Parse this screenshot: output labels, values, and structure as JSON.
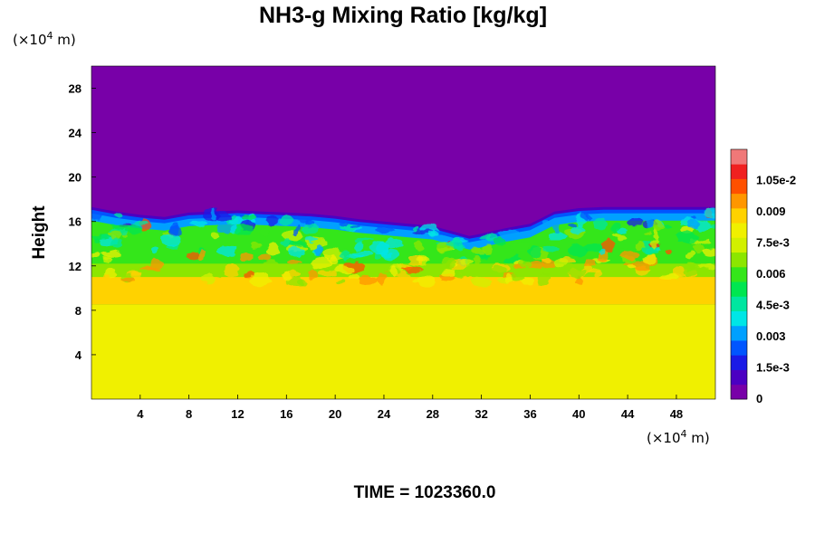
{
  "chart_data": {
    "type": "heatmap",
    "title": "NH3-g Mixing Ratio [kg/kg]",
    "ylabel": "Height",
    "xunit": "(×10",
    "xunit_exp": "4",
    "xunit_tail": " m)",
    "yunit": "(×10",
    "yunit_exp": "4",
    "yunit_tail": " m)",
    "xlim": [
      0,
      51.2
    ],
    "ylim": [
      0,
      30
    ],
    "x_ticks": [
      "4",
      "8",
      "12",
      "16",
      "20",
      "24",
      "28",
      "32",
      "36",
      "40",
      "44",
      "48"
    ],
    "x_tick_values": [
      4,
      8,
      12,
      16,
      20,
      24,
      28,
      32,
      36,
      40,
      44,
      48
    ],
    "y_ticks": [
      "4",
      "8",
      "12",
      "16",
      "20",
      "24",
      "28"
    ],
    "y_tick_values": [
      4,
      8,
      12,
      16,
      20,
      24,
      28
    ],
    "colorbar": {
      "min": 0,
      "max": 0.012,
      "labels": [
        "0",
        "1.5e-3",
        "0.003",
        "4.5e-3",
        "0.006",
        "7.5e-3",
        "0.009",
        "1.05e-2"
      ],
      "label_values": [
        0,
        0.0015,
        0.003,
        0.0045,
        0.006,
        0.0075,
        0.009,
        0.0105
      ],
      "colors": [
        "#7800a8",
        "#4b00c2",
        "#1a1ae6",
        "#0055ff",
        "#00a0ff",
        "#00e6e6",
        "#00e6a0",
        "#00e650",
        "#34e61a",
        "#8ce600",
        "#d2f000",
        "#f0f000",
        "#ffd200",
        "#ff9600",
        "#ff5000",
        "#f02020",
        "#f07878"
      ]
    },
    "cloud_top_height_profile": {
      "x": [
        0,
        2,
        4,
        6,
        8,
        10,
        12,
        14,
        16,
        18,
        20,
        22,
        24,
        26,
        28,
        30,
        31,
        32,
        34,
        36,
        38,
        40,
        42,
        44,
        46,
        48,
        51.2
      ],
      "y": [
        17.3,
        16.9,
        16.6,
        16.4,
        16.8,
        16.9,
        17.0,
        16.9,
        16.8,
        16.7,
        16.5,
        16.2,
        16.0,
        15.8,
        15.6,
        15.0,
        14.7,
        14.9,
        15.4,
        15.8,
        16.9,
        17.2,
        17.3,
        17.3,
        17.3,
        17.3,
        17.3
      ]
    },
    "field_summary": {
      "above_cloud_top": 0,
      "below_8": 0.0078,
      "between_8_and_11": 0.0085,
      "mixed_layer_11_to_cloud_top": [
        0.0035,
        0.0075
      ]
    }
  },
  "footer": {
    "time_label": "TIME = 1023360.0"
  }
}
